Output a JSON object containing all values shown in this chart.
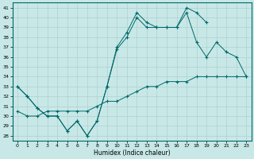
{
  "bg_color": "#c8e8e8",
  "line_color": "#006868",
  "grid_color": "#b0d0d0",
  "xlabel": "Humidex (Indice chaleur)",
  "xlim": [
    -0.5,
    23.5
  ],
  "ylim": [
    27.5,
    41.5
  ],
  "xticks": [
    0,
    1,
    2,
    3,
    4,
    5,
    6,
    7,
    8,
    9,
    10,
    11,
    12,
    13,
    14,
    15,
    16,
    17,
    18,
    19,
    20,
    21,
    22,
    23
  ],
  "yticks": [
    28,
    29,
    30,
    31,
    32,
    33,
    34,
    35,
    36,
    37,
    38,
    39,
    40,
    41
  ],
  "curve1": {
    "x": [
      0,
      1,
      2,
      3,
      4,
      5,
      6,
      7,
      8,
      9,
      10,
      11,
      12,
      13,
      14,
      15,
      16,
      17,
      18,
      19
    ],
    "y": [
      33.0,
      32.0,
      30.8,
      30.0,
      30.0,
      28.5,
      29.5,
      28.0,
      29.5,
      33.0,
      37.0,
      38.5,
      40.5,
      39.5,
      39.0,
      39.0,
      39.0,
      41.0,
      40.5,
      39.5
    ]
  },
  "curve2": {
    "x": [
      0,
      1,
      2,
      3,
      4,
      5,
      6,
      7,
      8,
      9,
      10,
      11,
      12,
      13,
      14,
      15,
      16,
      17,
      18,
      19,
      20,
      21,
      22,
      23
    ],
    "y": [
      33.0,
      32.0,
      30.8,
      30.0,
      30.0,
      28.5,
      29.5,
      28.0,
      29.5,
      33.0,
      36.8,
      38.0,
      40.0,
      39.0,
      39.0,
      39.0,
      39.0,
      40.5,
      37.5,
      36.0,
      37.5,
      36.5,
      36.0,
      34.0
    ]
  },
  "curve3": {
    "x": [
      0,
      1,
      2,
      3,
      4,
      5,
      6,
      7,
      8,
      9,
      10,
      11,
      12,
      13,
      14,
      15,
      16,
      17,
      18,
      19,
      20,
      21,
      22,
      23
    ],
    "y": [
      30.5,
      30.0,
      30.0,
      30.5,
      30.5,
      30.5,
      30.5,
      30.5,
      31.0,
      31.5,
      31.5,
      32.0,
      32.5,
      33.0,
      33.0,
      33.5,
      33.5,
      33.5,
      34.0,
      34.0,
      34.0,
      34.0,
      34.0,
      34.0
    ]
  }
}
